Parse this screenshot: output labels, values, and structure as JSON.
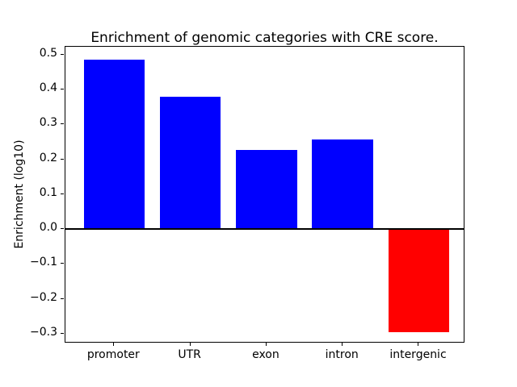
{
  "figure": {
    "title": "Enrichment of genomic categories with CRE score.",
    "ylabel": "Enrichment (log10)"
  },
  "chart_data": {
    "type": "bar",
    "title": "Enrichment of genomic categories with CRE score.",
    "xlabel": "",
    "ylabel": "Enrichment (log10)",
    "categories": [
      "promoter",
      "UTR",
      "exon",
      "intron",
      "intergenic"
    ],
    "values": [
      0.485,
      0.38,
      0.227,
      0.258,
      -0.295
    ],
    "bar_colors": [
      "#0000ff",
      "#0000ff",
      "#0000ff",
      "#0000ff",
      "#ff0000"
    ],
    "positive_color": "#0000ff",
    "negative_color": "#ff0000",
    "yticks": [
      0.5,
      0.4,
      0.3,
      0.2,
      0.1,
      0.0,
      -0.1,
      -0.2,
      -0.3
    ],
    "ylim": [
      -0.328,
      0.523
    ],
    "xlim": [
      -0.64,
      4.61
    ],
    "bar_width_units": 0.8,
    "zero_line": true,
    "grid": false,
    "legend": null,
    "background_color": "#ffffff",
    "axis_color": "#000000"
  }
}
